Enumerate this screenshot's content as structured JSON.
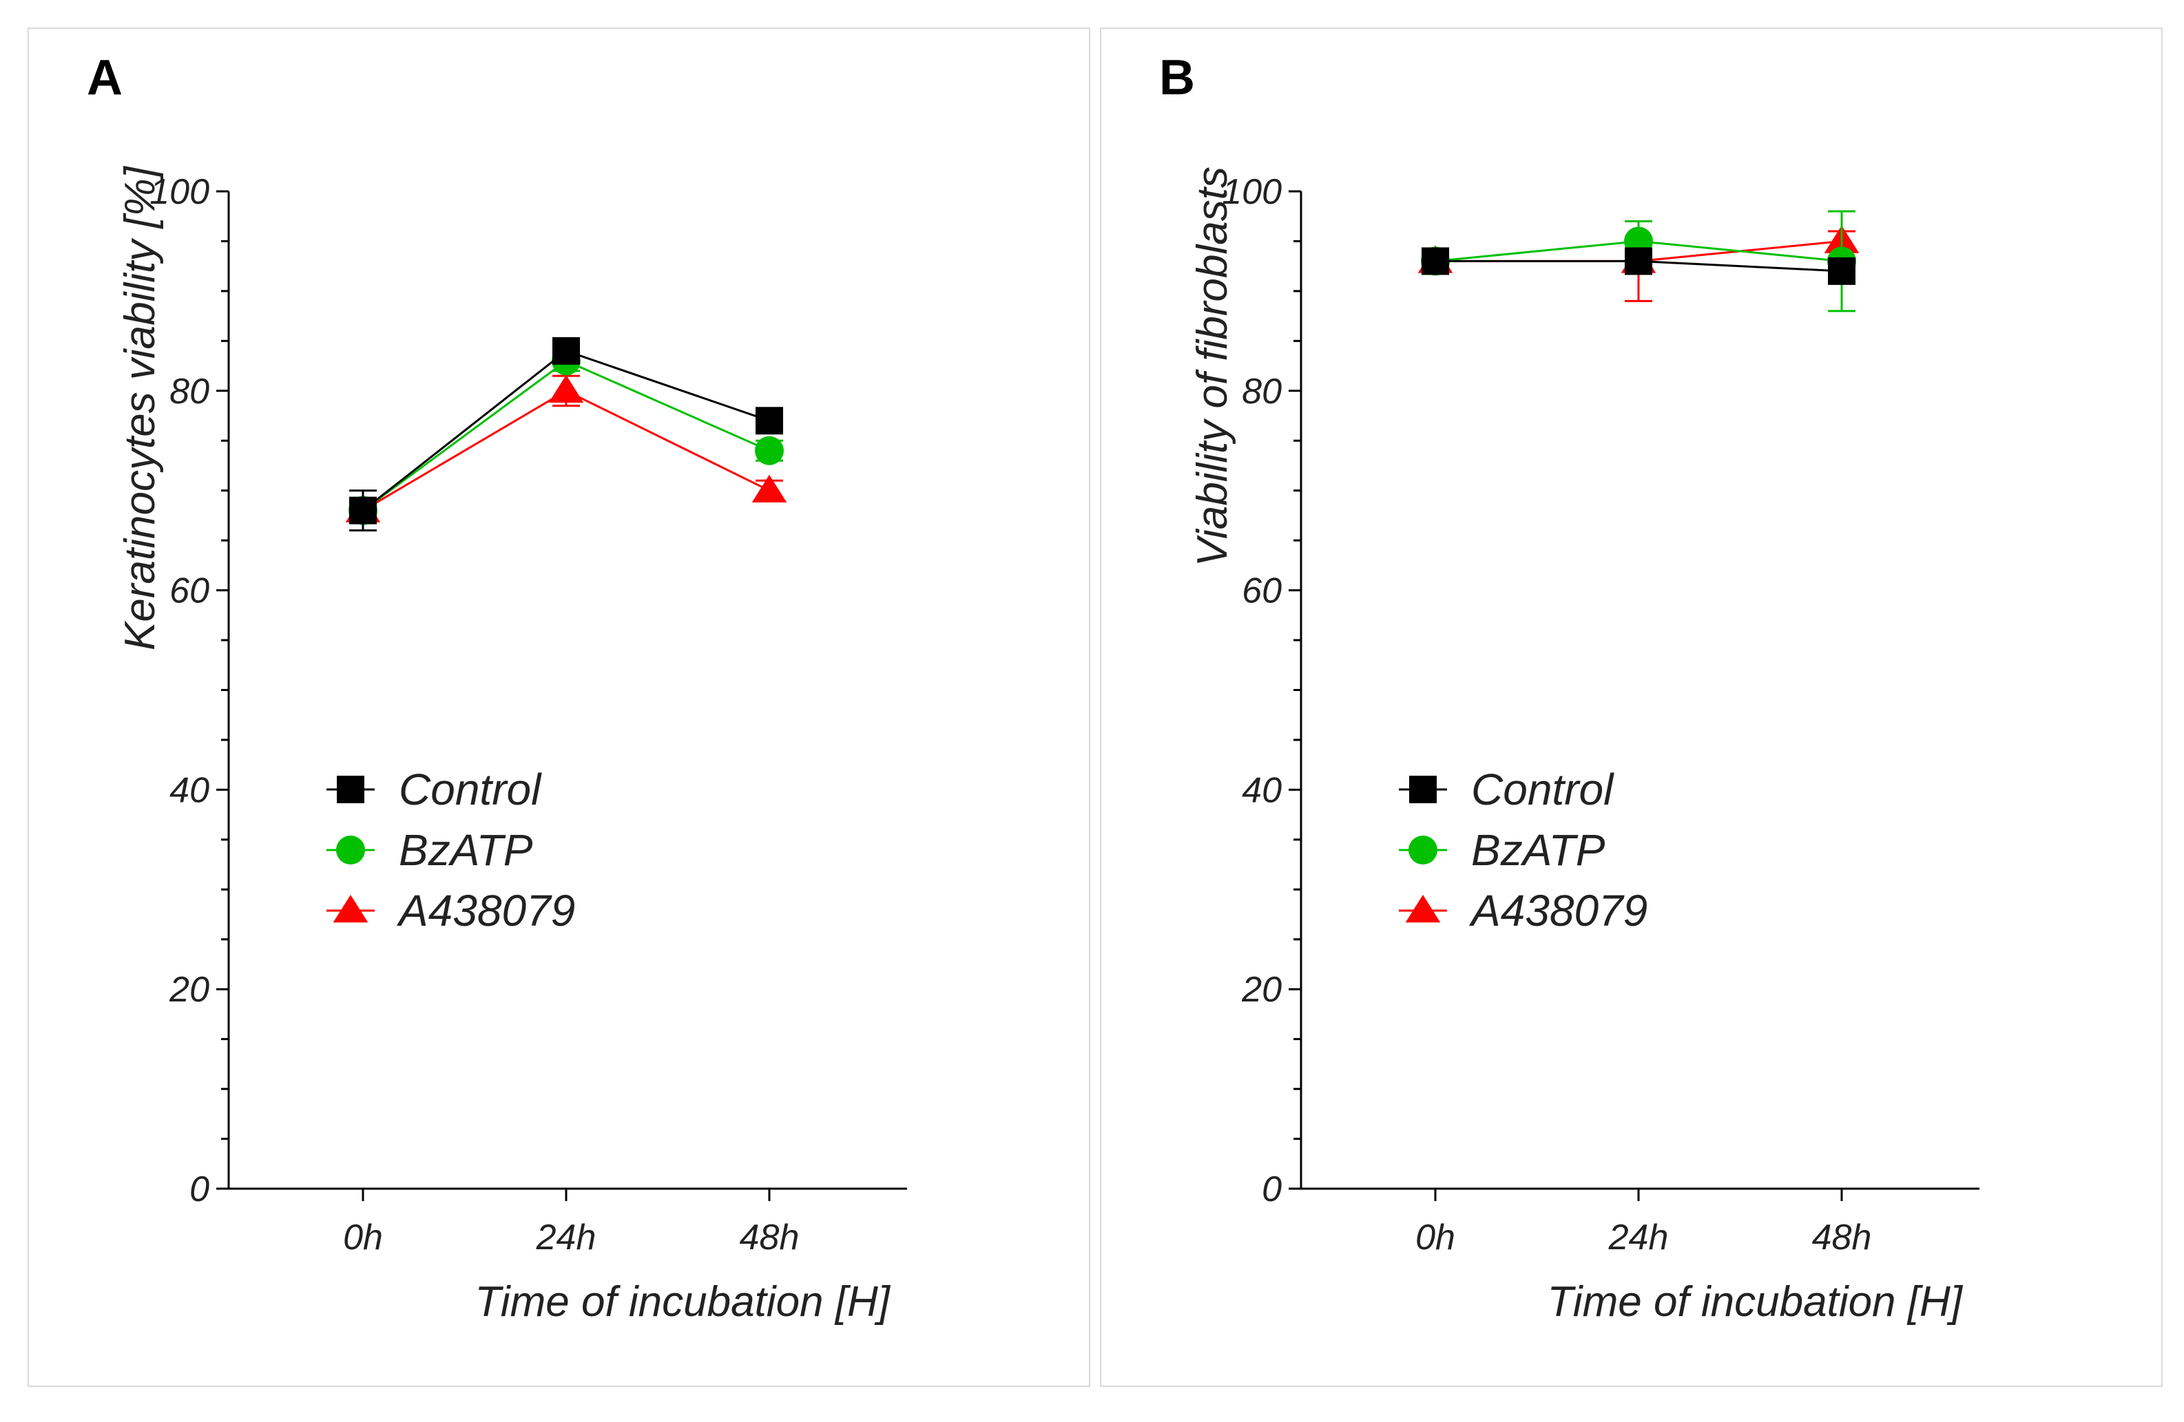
{
  "chart_data": [
    {
      "type": "line",
      "panel_label": "A",
      "xlabel": "Time of incubation [H]",
      "ylabel": "Keratinocytes viability [%]",
      "categories": [
        "0h",
        "24h",
        "48h"
      ],
      "ylim": [
        0,
        100
      ],
      "yticks": [
        0,
        20,
        40,
        60,
        80,
        100
      ],
      "legend_position": "left-middle",
      "series": [
        {
          "name": "Control",
          "marker": "square",
          "color": "#000000",
          "values": [
            68,
            84,
            77
          ],
          "errors": [
            2,
            1,
            1
          ]
        },
        {
          "name": "BzATP",
          "marker": "circle",
          "color": "#00c000",
          "values": [
            68,
            83,
            74
          ],
          "errors": [
            1,
            1,
            1
          ]
        },
        {
          "name": "A438079",
          "marker": "triangle",
          "color": "#ff0000",
          "values": [
            68,
            80,
            70
          ],
          "errors": [
            1,
            1.5,
            1
          ]
        }
      ]
    },
    {
      "type": "line",
      "panel_label": "B",
      "xlabel": "Time of incubation [H]",
      "ylabel": "Viability of fibroblasts",
      "categories": [
        "0h",
        "24h",
        "48h"
      ],
      "ylim": [
        0,
        100
      ],
      "yticks": [
        0,
        20,
        40,
        60,
        80,
        100
      ],
      "legend_position": "left-middle",
      "series": [
        {
          "name": "Control",
          "marker": "square",
          "color": "#000000",
          "values": [
            93,
            93,
            92
          ],
          "errors": [
            1,
            1,
            1
          ]
        },
        {
          "name": "BzATP",
          "marker": "circle",
          "color": "#00c000",
          "values": [
            93,
            95,
            93
          ],
          "errors": [
            1,
            2,
            5
          ]
        },
        {
          "name": "A438079",
          "marker": "triangle",
          "color": "#ff0000",
          "values": [
            93,
            93,
            95
          ],
          "errors": [
            1,
            4,
            1
          ]
        }
      ]
    }
  ]
}
